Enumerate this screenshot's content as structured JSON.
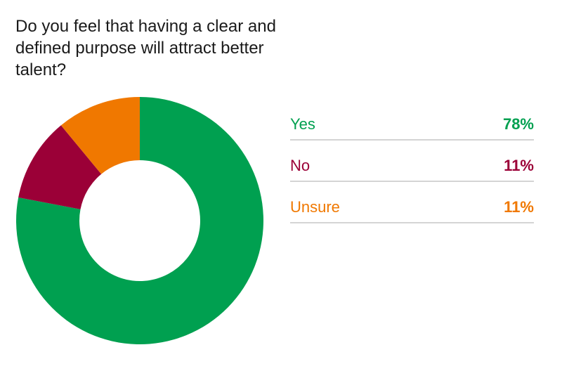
{
  "chart_data": {
    "type": "pie",
    "donut": true,
    "title": "Do you feel that having a clear and defined purpose will attract better talent?",
    "categories": [
      "Yes",
      "No",
      "Unsure"
    ],
    "values": [
      78,
      11,
      11
    ],
    "value_labels": [
      "78%",
      "11%",
      "11%"
    ],
    "colors": [
      "#00a050",
      "#9b0037",
      "#f07800"
    ]
  }
}
